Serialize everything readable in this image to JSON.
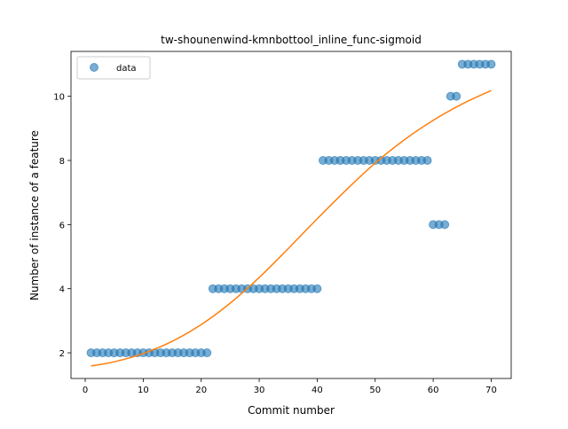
{
  "chart_data": {
    "type": "scatter",
    "title": "tw-shounenwind-kmnbottool_inline_func-sigmoid",
    "xlabel": "Commit number",
    "ylabel": "Number of instance of a feature",
    "xlim": [
      -2.45,
      73.45
    ],
    "ylim": [
      1.2,
      11.4
    ],
    "xticks": [
      0,
      10,
      20,
      30,
      40,
      50,
      60,
      70
    ],
    "yticks": [
      2,
      4,
      6,
      8,
      10
    ],
    "legend": {
      "entries": [
        "data"
      ],
      "placement": "upper-left"
    },
    "colors": {
      "points": "#1f77b4",
      "curve": "#ff7f0e"
    },
    "series": [
      {
        "name": "data",
        "kind": "scatter",
        "x": [
          1,
          2,
          3,
          4,
          5,
          6,
          7,
          8,
          9,
          10,
          11,
          12,
          13,
          14,
          15,
          16,
          17,
          18,
          19,
          20,
          21,
          22,
          23,
          24,
          25,
          26,
          27,
          28,
          29,
          30,
          31,
          32,
          33,
          34,
          35,
          36,
          37,
          38,
          39,
          40,
          41,
          42,
          43,
          44,
          45,
          46,
          47,
          48,
          49,
          50,
          51,
          52,
          53,
          54,
          55,
          56,
          57,
          58,
          59,
          60,
          61,
          62,
          63,
          64,
          65,
          66,
          67,
          68,
          69,
          70
        ],
        "y": [
          2,
          2,
          2,
          2,
          2,
          2,
          2,
          2,
          2,
          2,
          2,
          2,
          2,
          2,
          2,
          2,
          2,
          2,
          2,
          2,
          2,
          4,
          4,
          4,
          4,
          4,
          4,
          4,
          4,
          4,
          4,
          4,
          4,
          4,
          4,
          4,
          4,
          4,
          4,
          4,
          8,
          8,
          8,
          8,
          8,
          8,
          8,
          8,
          8,
          8,
          8,
          8,
          8,
          8,
          8,
          8,
          8,
          8,
          8,
          6,
          6,
          6,
          10,
          10,
          11,
          11,
          11,
          11,
          11,
          11
        ]
      },
      {
        "kind": "line",
        "x": [
          1,
          5,
          10,
          15,
          20,
          25,
          30,
          35,
          40,
          45,
          50,
          55,
          60,
          65,
          70
        ],
        "y": [
          1.59,
          1.72,
          1.98,
          2.36,
          2.88,
          3.55,
          4.35,
          5.25,
          6.18,
          7.08,
          7.92,
          8.64,
          9.25,
          9.76,
          10.18
        ]
      }
    ]
  }
}
